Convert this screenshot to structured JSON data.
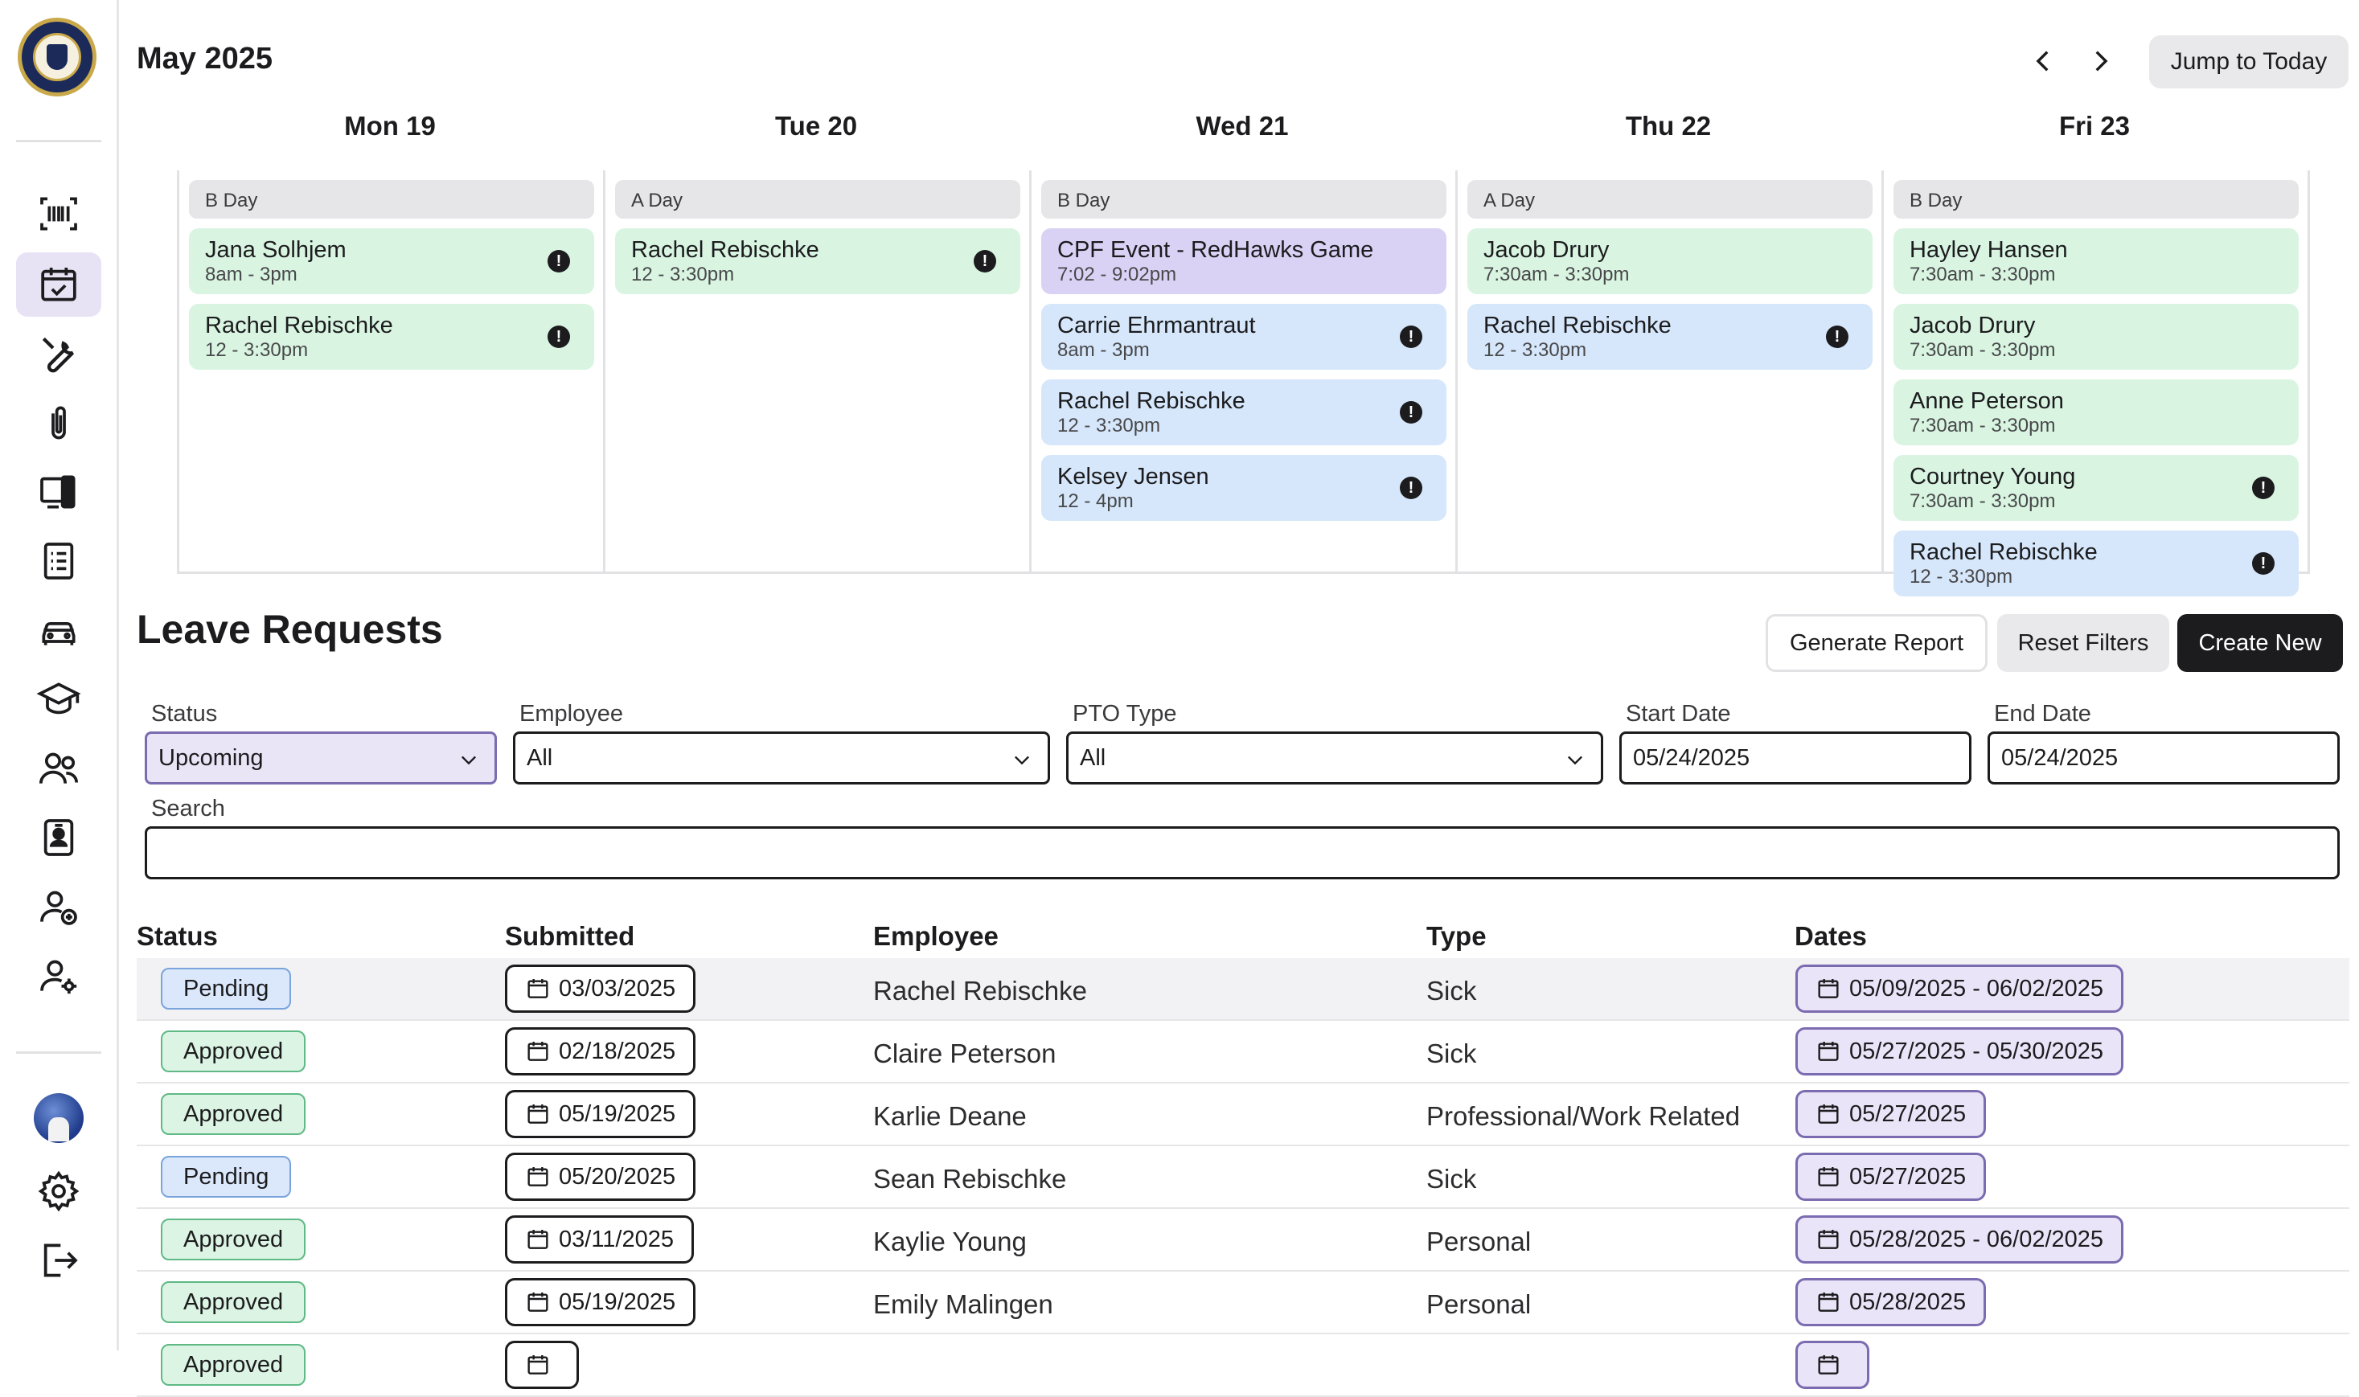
{
  "calendar": {
    "month_title": "May 2025",
    "jump_label": "Jump to Today",
    "days": [
      {
        "header": "Mon 19",
        "day_type": "B Day",
        "events": [
          {
            "name": "Jana Solhjem",
            "time": "8am - 3pm",
            "color": "green",
            "alert": "!"
          },
          {
            "name": "Rachel Rebischke",
            "time": "12 - 3:30pm",
            "color": "green",
            "alert": "!"
          }
        ]
      },
      {
        "header": "Tue 20",
        "day_type": "A Day",
        "events": [
          {
            "name": "Rachel Rebischke",
            "time": "12 - 3:30pm",
            "color": "green",
            "alert": "!"
          }
        ]
      },
      {
        "header": "Wed 21",
        "day_type": "B Day",
        "events": [
          {
            "name": "CPF Event - RedHawks Game",
            "time": "7:02 - 9:02pm",
            "color": "purple",
            "alert": ""
          },
          {
            "name": "Carrie Ehrmantraut",
            "time": "8am - 3pm",
            "color": "blue",
            "alert": "!"
          },
          {
            "name": "Rachel Rebischke",
            "time": "12 - 3:30pm",
            "color": "blue",
            "alert": "!"
          },
          {
            "name": "Kelsey Jensen",
            "time": "12 - 4pm",
            "color": "blue",
            "alert": "!"
          }
        ]
      },
      {
        "header": "Thu 22",
        "day_type": "A Day",
        "events": [
          {
            "name": "Jacob Drury",
            "time": "7:30am - 3:30pm",
            "color": "green",
            "alert": ""
          },
          {
            "name": "Rachel Rebischke",
            "time": "12 - 3:30pm",
            "color": "blue",
            "alert": "!"
          }
        ]
      },
      {
        "header": "Fri 23",
        "day_type": "B Day",
        "events": [
          {
            "name": "Hayley Hansen",
            "time": "7:30am - 3:30pm",
            "color": "green",
            "alert": ""
          },
          {
            "name": "Jacob Drury",
            "time": "7:30am - 3:30pm",
            "color": "green",
            "alert": ""
          },
          {
            "name": "Anne Peterson",
            "time": "7:30am - 3:30pm",
            "color": "green",
            "alert": ""
          },
          {
            "name": "Courtney Young",
            "time": "7:30am - 3:30pm",
            "color": "green",
            "alert": "!"
          },
          {
            "name": "Rachel Rebischke",
            "time": "12 - 3:30pm",
            "color": "blue",
            "alert": "!"
          }
        ]
      }
    ]
  },
  "leave": {
    "title": "Leave Requests",
    "buttons": {
      "generate": "Generate Report",
      "reset": "Reset Filters",
      "create": "Create New"
    },
    "filters": {
      "status_label": "Status",
      "status_value": "Upcoming",
      "employee_label": "Employee",
      "employee_value": "All",
      "pto_label": "PTO Type",
      "pto_value": "All",
      "start_label": "Start Date",
      "start_value": "05/24/2025",
      "end_label": "End Date",
      "end_value": "05/24/2025",
      "search_label": "Search",
      "search_value": ""
    },
    "columns": {
      "status": "Status",
      "submitted": "Submitted",
      "employee": "Employee",
      "type": "Type",
      "dates": "Dates"
    },
    "rows": [
      {
        "status": "Pending",
        "submitted": "03/03/2025",
        "employee": "Rachel Rebischke",
        "type": "Sick",
        "dates": "05/09/2025 - 06/02/2025"
      },
      {
        "status": "Approved",
        "submitted": "02/18/2025",
        "employee": "Claire Peterson",
        "type": "Sick",
        "dates": "05/27/2025 - 05/30/2025"
      },
      {
        "status": "Approved",
        "submitted": "05/19/2025",
        "employee": "Karlie Deane",
        "type": "Professional/Work Related",
        "dates": "05/27/2025"
      },
      {
        "status": "Pending",
        "submitted": "05/20/2025",
        "employee": "Sean Rebischke",
        "type": "Sick",
        "dates": "05/27/2025"
      },
      {
        "status": "Approved",
        "submitted": "03/11/2025",
        "employee": "Kaylie Young",
        "type": "Personal",
        "dates": "05/28/2025 - 06/02/2025"
      },
      {
        "status": "Approved",
        "submitted": "05/19/2025",
        "employee": "Emily Malingen",
        "type": "Personal",
        "dates": "05/28/2025"
      },
      {
        "status": "Approved",
        "submitted": "",
        "employee": "",
        "type": "",
        "dates": ""
      }
    ]
  },
  "sidebar": {
    "icons": [
      "barcode-icon",
      "calendar-check-icon",
      "tools-icon",
      "paperclip-icon",
      "devices-icon",
      "document-list-icon",
      "car-icon",
      "graduation-cap-icon",
      "users-icon",
      "id-badge-icon",
      "user-add-icon",
      "user-settings-icon"
    ],
    "bottom_icons": [
      "avatar",
      "gear-icon",
      "logout-icon"
    ],
    "colors": {
      "active_bg": "#e8e2f5",
      "green_event": "#d9f5e2",
      "blue_event": "#d6e7fb",
      "purple_event": "#d9d2f5"
    }
  }
}
